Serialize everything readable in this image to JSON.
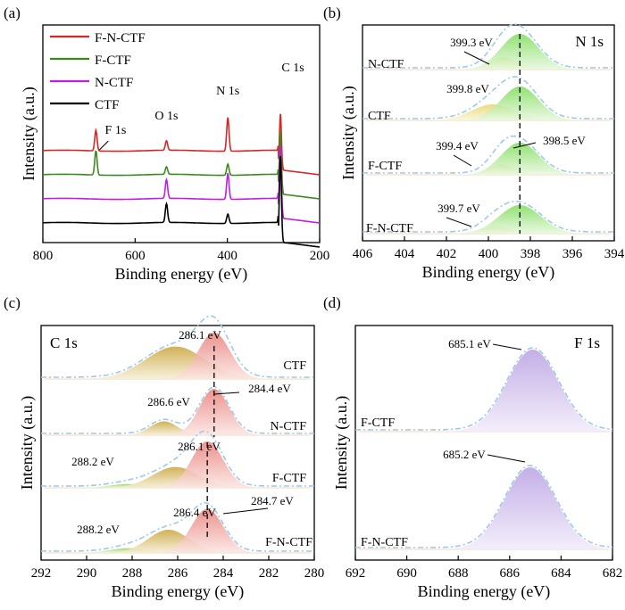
{
  "colors": {
    "F-N-CTF": "#d62728",
    "F-CTF": "#3c8a1e",
    "N-CTF": "#bf1fe0",
    "CTF": "#000000",
    "envelope": "#9ec9e8",
    "n_comp1": "#7fdc5a",
    "n_comp2": "#e7d46a",
    "c_main": "#e8807a",
    "c_second": "#c9a43a",
    "c_third": "#8fd44f",
    "f_comp": "#b9a1e2"
  },
  "chart_data": [
    {
      "panel": "(a)",
      "type": "line",
      "xlabel": "Binding energy (eV)",
      "ylabel": "Intensity (a.u.)",
      "xlim": [
        800,
        200
      ],
      "xticks": [
        800,
        600,
        400,
        200
      ],
      "legend": [
        "F-N-CTF",
        "F-CTF",
        "N-CTF",
        "CTF"
      ],
      "legend_position": "top-left",
      "annotations": [
        {
          "text": "F 1s",
          "x": 685
        },
        {
          "text": "O 1s",
          "x": 532
        },
        {
          "text": "N 1s",
          "x": 399
        },
        {
          "text": "C 1s",
          "x": 285
        }
      ],
      "series": [
        {
          "name": "F-N-CTF",
          "baseline": 3,
          "peaks": [
            {
              "x": 685,
              "h": 1.1
            },
            {
              "x": 532,
              "h": 0.5
            },
            {
              "x": 399,
              "h": 1.8
            },
            {
              "x": 285,
              "h": 3.0
            }
          ]
        },
        {
          "name": "F-CTF",
          "baseline": 2,
          "peaks": [
            {
              "x": 685,
              "h": 1.3
            },
            {
              "x": 532,
              "h": 0.4
            },
            {
              "x": 399,
              "h": 0.6
            },
            {
              "x": 285,
              "h": 3.4
            }
          ]
        },
        {
          "name": "N-CTF",
          "baseline": 1,
          "peaks": [
            {
              "x": 532,
              "h": 1.0
            },
            {
              "x": 399,
              "h": 1.4
            },
            {
              "x": 285,
              "h": 3.9
            }
          ]
        },
        {
          "name": "CTF",
          "baseline": 0,
          "peaks": [
            {
              "x": 532,
              "h": 1.0
            },
            {
              "x": 399,
              "h": 0.5
            },
            {
              "x": 285,
              "h": 4.6
            }
          ]
        }
      ]
    },
    {
      "panel": "(b)",
      "type": "area",
      "corner_label": "N 1s",
      "xlabel": "Binding energy (eV)",
      "ylabel": "Intensity (a.u.)",
      "xlim": [
        406,
        394
      ],
      "xticks": [
        406,
        404,
        402,
        400,
        398,
        396,
        394
      ],
      "reference_line": 398.5,
      "series": [
        {
          "name": "N-CTF",
          "components": [
            {
              "center": 398.5,
              "height": 1.0,
              "width": 0.9
            },
            {
              "center": 399.3,
              "height": 0.35,
              "width": 0.7
            }
          ],
          "peak_labels": [
            {
              "text": "399.3 eV",
              "x": 399.3
            }
          ]
        },
        {
          "name": "CTF",
          "components": [
            {
              "center": 398.5,
              "height": 0.95,
              "width": 0.9
            },
            {
              "center": 399.8,
              "height": 0.45,
              "width": 1.0
            }
          ],
          "peak_labels": [
            {
              "text": "399.8 eV",
              "x": 399.8
            }
          ]
        },
        {
          "name": "F-CTF",
          "components": [
            {
              "center": 398.5,
              "height": 0.9,
              "width": 0.9
            },
            {
              "center": 399.4,
              "height": 0.3,
              "width": 0.6
            }
          ],
          "peak_labels": [
            {
              "text": "399.4 eV",
              "x": 399.4
            },
            {
              "text": "398.5 eV",
              "x": 398.5
            }
          ]
        },
        {
          "name": "F-N-CTF",
          "components": [
            {
              "center": 398.5,
              "height": 0.8,
              "width": 1.0
            },
            {
              "center": 399.7,
              "height": 0.2,
              "width": 0.7
            }
          ],
          "peak_labels": [
            {
              "text": "399.7 eV",
              "x": 399.7
            }
          ]
        }
      ]
    },
    {
      "panel": "(c)",
      "type": "area",
      "corner_label": "C 1s",
      "xlabel": "Binding energy (eV)",
      "ylabel": "Intensity (a.u.)",
      "xlim": [
        292,
        280
      ],
      "xticks": [
        292,
        290,
        288,
        286,
        284,
        282,
        280
      ],
      "reference_lines": [
        284.4,
        284.7
      ],
      "series": [
        {
          "name": "CTF",
          "components": [
            {
              "center": 284.4,
              "height": 1.0,
              "width": 0.7
            },
            {
              "center": 286.1,
              "height": 0.7,
              "width": 1.3
            }
          ],
          "peak_labels": [
            {
              "text": "286.1 eV",
              "x": 286.1
            }
          ]
        },
        {
          "name": "N-CTF",
          "components": [
            {
              "center": 284.4,
              "height": 1.0,
              "width": 0.65
            },
            {
              "center": 286.6,
              "height": 0.3,
              "width": 0.6
            }
          ],
          "peak_labels": [
            {
              "text": "286.6 eV",
              "x": 286.6
            },
            {
              "text": "284.4 eV",
              "x": 284.4
            }
          ]
        },
        {
          "name": "F-CTF",
          "components": [
            {
              "center": 284.7,
              "height": 1.0,
              "width": 0.7
            },
            {
              "center": 286.1,
              "height": 0.45,
              "width": 1.0
            },
            {
              "center": 288.2,
              "height": 0.08,
              "width": 0.8
            }
          ],
          "peak_labels": [
            {
              "text": "286.1 eV",
              "x": 286.1
            },
            {
              "text": "288.2 eV",
              "x": 288.2
            }
          ]
        },
        {
          "name": "F-N-CTF",
          "components": [
            {
              "center": 284.7,
              "height": 0.95,
              "width": 0.7
            },
            {
              "center": 286.4,
              "height": 0.5,
              "width": 0.9
            },
            {
              "center": 288.2,
              "height": 0.1,
              "width": 0.8
            }
          ],
          "peak_labels": [
            {
              "text": "286.4 eV",
              "x": 286.4
            },
            {
              "text": "284.7 eV",
              "x": 284.7
            },
            {
              "text": "288.2 eV",
              "x": 288.2
            }
          ]
        }
      ]
    },
    {
      "panel": "(d)",
      "type": "area",
      "corner_label": "F 1s",
      "xlabel": "Binding energy (eV)",
      "ylabel": "Intensity (a.u.)",
      "xlim": [
        692,
        682
      ],
      "xticks": [
        692,
        690,
        688,
        686,
        684,
        682
      ],
      "series": [
        {
          "name": "F-CTF",
          "components": [
            {
              "center": 685.1,
              "height": 1.0,
              "width": 1.0
            }
          ],
          "peak_labels": [
            {
              "text": "685.1 eV",
              "x": 685.1
            }
          ]
        },
        {
          "name": "F-N-CTF",
          "components": [
            {
              "center": 685.2,
              "height": 1.0,
              "width": 1.0
            }
          ],
          "peak_labels": [
            {
              "text": "685.2 eV",
              "x": 685.2
            }
          ]
        }
      ]
    }
  ]
}
